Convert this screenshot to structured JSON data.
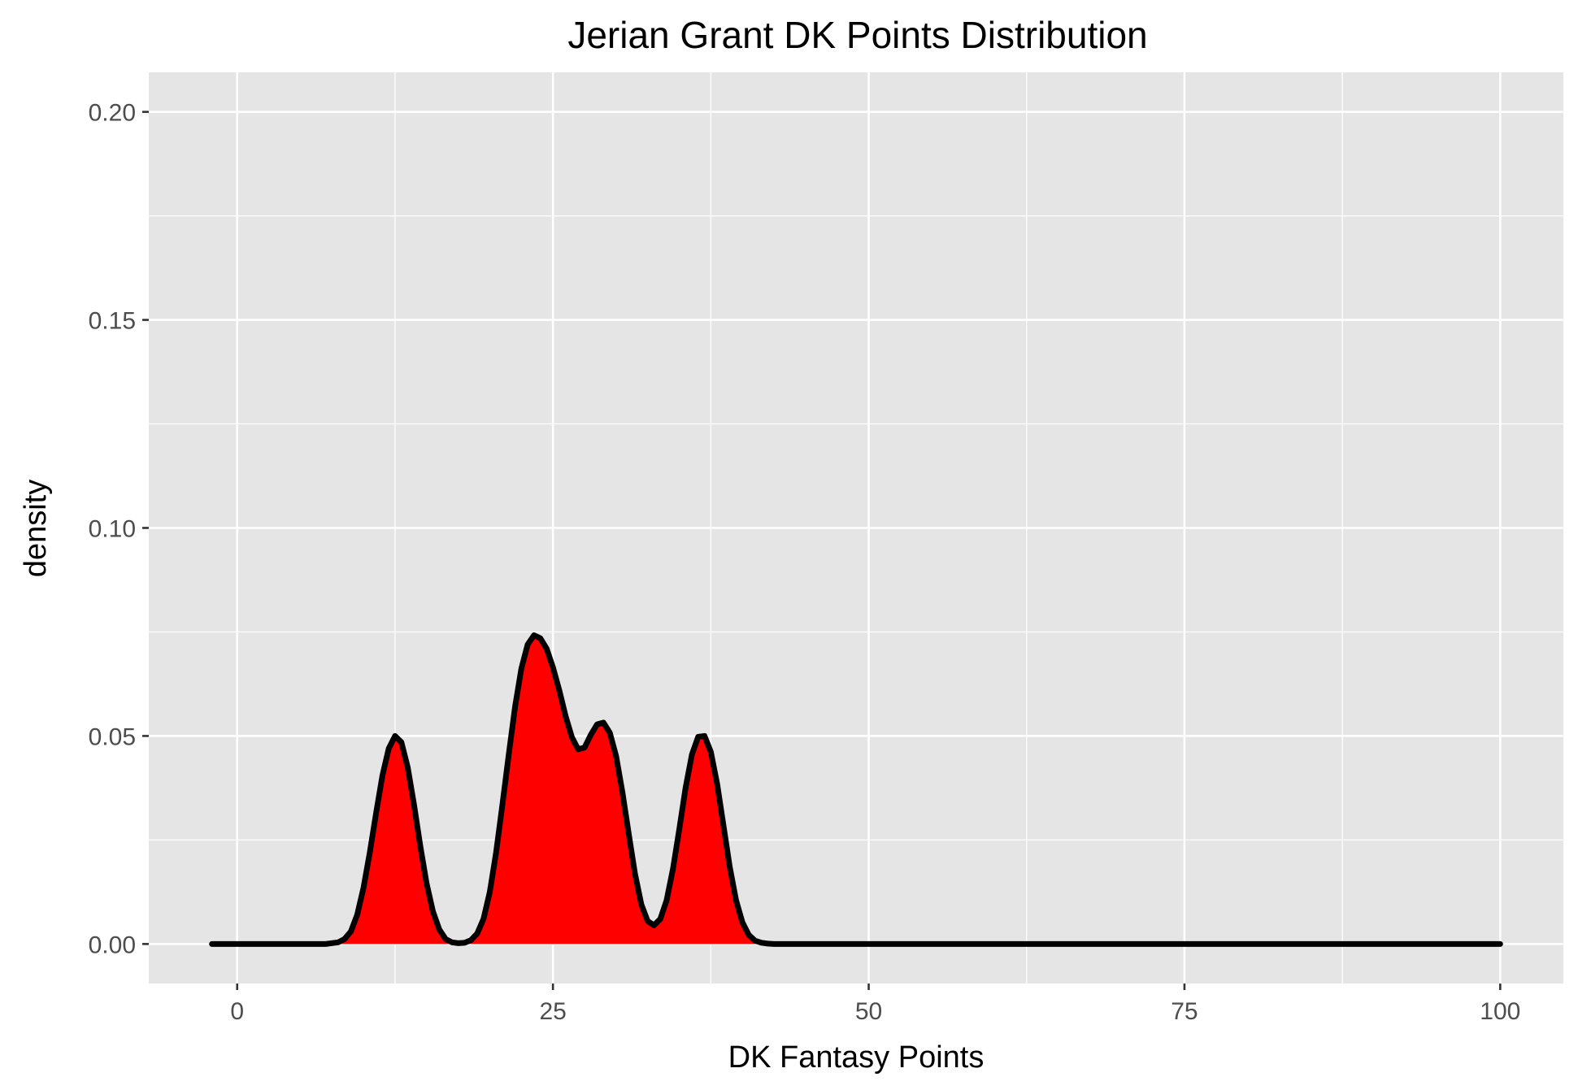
{
  "chart_data": {
    "type": "area",
    "title": "Jerian Grant DK Points Distribution",
    "xlabel": "DK Fantasy Points",
    "ylabel": "density",
    "xlim": [
      -7,
      105
    ],
    "ylim": [
      -0.0095,
      0.2095
    ],
    "x_ticks": [
      0,
      25,
      50,
      75,
      100
    ],
    "x_tick_labels": [
      "0",
      "25",
      "50",
      "75",
      "100"
    ],
    "x_minor_ticks": [
      12.5,
      37.5,
      62.5,
      87.5
    ],
    "y_ticks": [
      0.0,
      0.05,
      0.1,
      0.15,
      0.2
    ],
    "y_tick_labels": [
      "0.00",
      "0.05",
      "0.10",
      "0.15",
      "0.20"
    ],
    "y_minor_ticks": [
      0.025,
      0.075,
      0.125,
      0.175
    ],
    "grid": true,
    "legend": "none",
    "series": [
      {
        "x": [
          -2,
          0,
          2,
          4,
          6,
          7,
          8,
          8.5,
          9,
          9.5,
          10,
          10.5,
          11,
          11.5,
          12,
          12.5,
          13,
          13.5,
          14,
          14.5,
          15,
          15.5,
          16,
          16.5,
          17,
          17.5,
          18,
          18.5,
          19,
          19.5,
          20,
          20.5,
          21,
          21.5,
          22,
          22.5,
          23,
          23.5,
          24,
          24.5,
          25,
          25.5,
          26,
          26.5,
          27,
          27.5,
          28,
          28.5,
          29,
          29.5,
          30,
          30.5,
          31,
          31.5,
          32,
          32.5,
          33,
          33.5,
          34,
          34.5,
          35,
          35.5,
          36,
          36.5,
          37,
          37.5,
          38,
          38.5,
          39,
          39.5,
          40,
          40.5,
          41,
          41.5,
          42,
          42.5,
          43,
          44,
          46,
          50,
          60,
          70,
          80,
          90,
          100
        ],
        "y": [
          0,
          0,
          0,
          0,
          0,
          0,
          0.0004,
          0.0012,
          0.003,
          0.007,
          0.0135,
          0.022,
          0.0315,
          0.0405,
          0.047,
          0.05,
          0.0485,
          0.0425,
          0.0335,
          0.0235,
          0.0145,
          0.0078,
          0.0035,
          0.0012,
          0.0004,
          0.0002,
          0.0003,
          0.0009,
          0.0025,
          0.006,
          0.0125,
          0.022,
          0.0335,
          0.0455,
          0.057,
          0.0662,
          0.072,
          0.0742,
          0.0735,
          0.071,
          0.0665,
          0.061,
          0.0548,
          0.0497,
          0.0468,
          0.0472,
          0.0503,
          0.0528,
          0.0532,
          0.0508,
          0.0452,
          0.0365,
          0.0265,
          0.0168,
          0.0095,
          0.0055,
          0.0045,
          0.006,
          0.0105,
          0.018,
          0.0275,
          0.0375,
          0.0455,
          0.0498,
          0.05,
          0.0462,
          0.0385,
          0.0285,
          0.0185,
          0.0105,
          0.0052,
          0.0022,
          0.0008,
          0.0003,
          0.0001,
          0,
          0,
          0,
          0,
          0,
          0,
          0,
          0,
          0,
          0
        ]
      }
    ],
    "colors": {
      "fill": "#ff0000",
      "line": "#000000",
      "panel": "#e5e5e5",
      "grid": "#ffffff",
      "tick_label": "#4d4d4d"
    }
  }
}
